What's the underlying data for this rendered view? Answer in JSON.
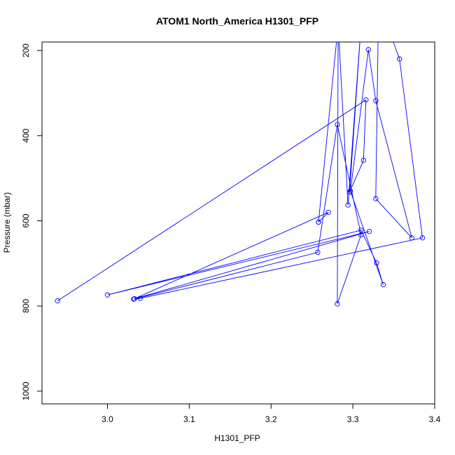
{
  "chart_data": {
    "type": "line",
    "title": "ATOM1 North_America H1301_PFP",
    "xlabel": "H1301_PFP",
    "ylabel": "Pressure (mbar)",
    "xlim": [
      2.92,
      3.4
    ],
    "ylim": [
      1030,
      180
    ],
    "y_reversed": true,
    "xticks": [
      3.0,
      3.1,
      3.2,
      3.3,
      3.4
    ],
    "xtick_labels": [
      "3.0",
      "3.1",
      "3.2",
      "3.3",
      "3.4"
    ],
    "yticks": [
      200,
      400,
      600,
      800,
      1000
    ],
    "ytick_labels": [
      "200",
      "400",
      "600",
      "800",
      "1000"
    ],
    "grid": false,
    "series": [
      {
        "color": "#0000ff",
        "marker": "open-circle",
        "points": [
          {
            "x": 2.939,
            "y": 788
          },
          {
            "x": 3.316,
            "y": 316
          },
          {
            "x": 3.313,
            "y": 458
          },
          {
            "x": 3.296,
            "y": 533
          },
          {
            "x": 3.31,
            "y": 140
          },
          {
            "x": 3.342,
            "y": 140
          },
          {
            "x": 3.357,
            "y": 220
          },
          {
            "x": 3.385,
            "y": 640
          },
          {
            "x": 3.04,
            "y": 782
          },
          {
            "x": 3.032,
            "y": 784
          },
          {
            "x": 3.257,
            "y": 674
          },
          {
            "x": 3.281,
            "y": 374
          },
          {
            "x": 3.31,
            "y": 633
          },
          {
            "x": 3.281,
            "y": 795
          },
          {
            "x": 3.282,
            "y": 140
          },
          {
            "x": 3.258,
            "y": 603
          },
          {
            "x": 3.282,
            "y": 140
          },
          {
            "x": 3.294,
            "y": 563
          },
          {
            "x": 3.31,
            "y": 140
          },
          {
            "x": 3.331,
            "y": 140
          },
          {
            "x": 3.328,
            "y": 548
          },
          {
            "x": 3.372,
            "y": 640
          },
          {
            "x": 3.328,
            "y": 318
          },
          {
            "x": 3.319,
            "y": 198
          },
          {
            "x": 3.297,
            "y": 530
          },
          {
            "x": 3.337,
            "y": 750
          },
          {
            "x": 3.329,
            "y": 699
          },
          {
            "x": 3.31,
            "y": 622
          },
          {
            "x": 3.0,
            "y": 774
          },
          {
            "x": 3.32,
            "y": 625
          },
          {
            "x": 3.033,
            "y": 783
          },
          {
            "x": 3.27,
            "y": 580
          },
          {
            "x": 3.258,
            "y": 603
          }
        ]
      }
    ]
  }
}
